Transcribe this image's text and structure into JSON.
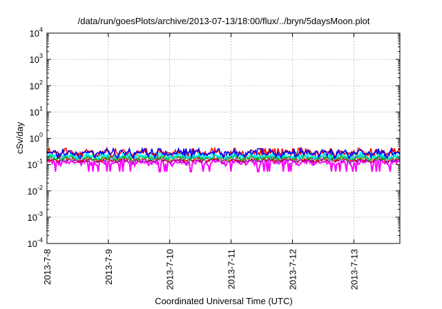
{
  "chart_data": {
    "type": "line",
    "title": "/data/run/goesPlots/archive/2013-07-13/18:00/flux/../bryn/5daysMoon.plot",
    "xlabel": "Coordinated Universal Time (UTC)",
    "ylabel": "cSv/day",
    "xlim": [
      "2013-07-08",
      "2013-07-13T18:00"
    ],
    "ylim": [
      0.0001,
      10000
    ],
    "yscale": "log",
    "grid": true,
    "x_ticks": [
      "2013-7-8",
      "2013-7-9",
      "2013-7-10",
      "2013-7-11",
      "2013-7-12",
      "2013-7-13"
    ],
    "y_ticks": [
      {
        "value": 0.0001,
        "base": "10",
        "exp": "-4"
      },
      {
        "value": 0.001,
        "base": "10",
        "exp": "-3"
      },
      {
        "value": 0.01,
        "base": "10",
        "exp": "-2"
      },
      {
        "value": 0.1,
        "base": "10",
        "exp": "-1"
      },
      {
        "value": 1,
        "base": "10",
        "exp": "0"
      },
      {
        "value": 10,
        "base": "10",
        "exp": "1"
      },
      {
        "value": 100,
        "base": "10",
        "exp": "2"
      },
      {
        "value": 1000,
        "base": "10",
        "exp": "3"
      },
      {
        "value": 10000,
        "base": "10",
        "exp": "4"
      }
    ],
    "series": [
      {
        "color": "#ff00ff",
        "base": 0.12,
        "var": 0.18,
        "dips": true
      },
      {
        "color": "#9900cc",
        "base": 0.14,
        "var": 0.12
      },
      {
        "color": "#cc0000",
        "base": 0.15,
        "var": 0.12
      },
      {
        "color": "#999999",
        "base": 0.16,
        "var": 0.12
      },
      {
        "color": "#00aa00",
        "base": 0.18,
        "var": 0.13
      },
      {
        "color": "#00cccc",
        "base": 0.2,
        "var": 0.14
      },
      {
        "color": "#00ffff",
        "base": 0.22,
        "var": 0.15
      },
      {
        "color": "#ff0000",
        "base": 0.28,
        "var": 0.22
      },
      {
        "color": "#0000ff",
        "base": 0.27,
        "var": 0.22
      }
    ]
  }
}
